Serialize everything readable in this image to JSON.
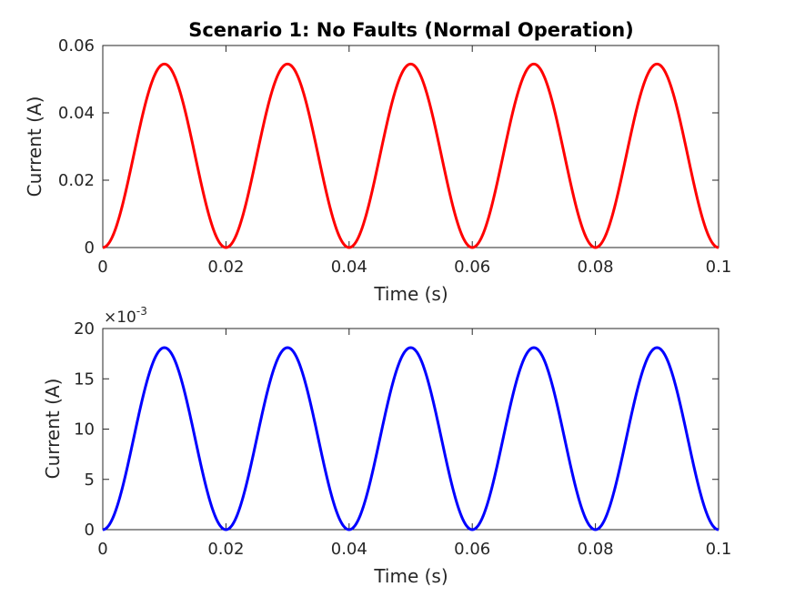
{
  "chart_data": [
    {
      "type": "line",
      "title": "Scenario 1: No Faults (Normal Operation)",
      "xlabel": "Time (s)",
      "ylabel": "Current (A)",
      "xlim": [
        0,
        0.1
      ],
      "ylim": [
        0,
        0.06
      ],
      "xticks": [
        "0",
        "0.02",
        "0.04",
        "0.06",
        "0.08",
        "0.1"
      ],
      "yticks": [
        "0",
        "0.02",
        "0.04",
        "0.06"
      ],
      "exponent_label": "",
      "grid": false,
      "series": [
        {
          "color": "#ff0000",
          "waveform": "0.0545 * sin^2(2*pi*25*t)",
          "amplitude": 0.0545,
          "frequency_hz": 25,
          "t_start": 0,
          "t_end": 0.1
        }
      ]
    },
    {
      "type": "line",
      "title": "",
      "xlabel": "Time (s)",
      "ylabel": "Current (A)",
      "xlim": [
        0,
        0.1
      ],
      "ylim": [
        0,
        20
      ],
      "xticks": [
        "0",
        "0.02",
        "0.04",
        "0.06",
        "0.08",
        "0.1"
      ],
      "yticks": [
        "0",
        "5",
        "10",
        "15",
        "20"
      ],
      "exponent_label": "×10",
      "exponent_power": "-3",
      "grid": false,
      "series": [
        {
          "color": "#0000ff",
          "waveform": "18.1 * sin^2(2*pi*25*t)",
          "amplitude": 18.1,
          "frequency_hz": 25,
          "t_start": 0,
          "t_end": 0.1
        }
      ]
    }
  ]
}
